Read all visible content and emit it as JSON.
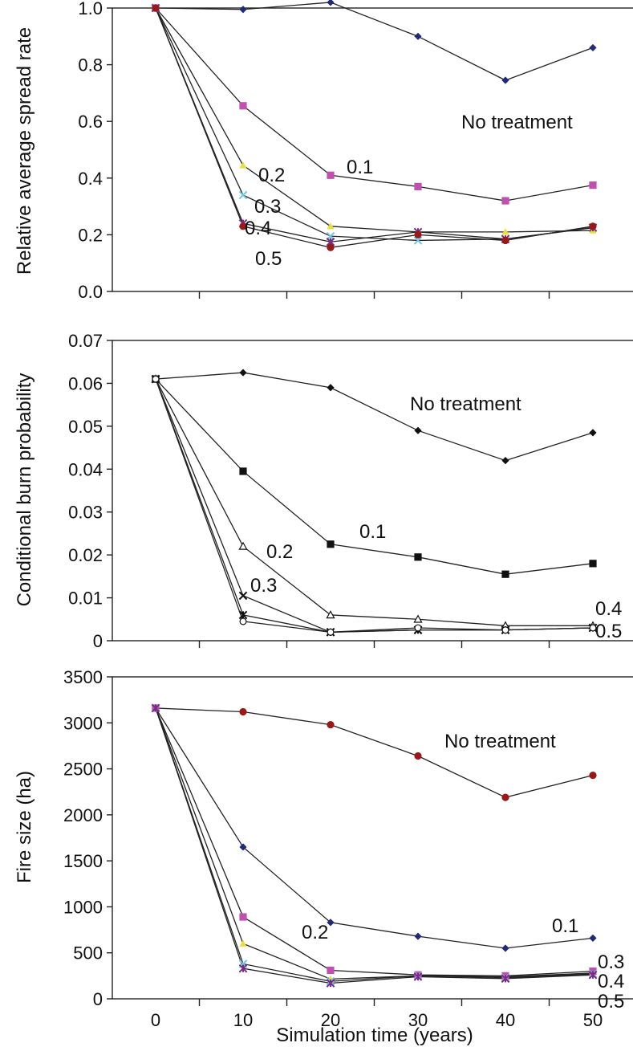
{
  "chart_data": [
    {
      "type": "line",
      "ylabel": "Relative average spread rate",
      "ylim": [
        0,
        1.0
      ],
      "yticks": [
        "0.0",
        "0.2",
        "0.4",
        "0.6",
        "0.8",
        "1.0"
      ],
      "x": [
        0,
        10,
        20,
        30,
        40,
        50
      ],
      "series": [
        {
          "name": "No treatment",
          "marker": "diamond",
          "color": "#1f2a7a",
          "values": [
            1.0,
            0.995,
            1.02,
            0.9,
            0.745,
            0.86
          ]
        },
        {
          "name": "0.1",
          "marker": "square",
          "color": "#c050b0",
          "values": [
            1.0,
            0.655,
            0.41,
            0.37,
            0.32,
            0.375
          ]
        },
        {
          "name": "0.2",
          "marker": "triangle",
          "color": "#e8e03a",
          "values": [
            1.0,
            0.445,
            0.23,
            0.21,
            0.21,
            0.215
          ]
        },
        {
          "name": "0.3",
          "marker": "x",
          "color": "#70c8e0",
          "values": [
            1.0,
            0.34,
            0.195,
            0.18,
            0.185,
            0.225
          ]
        },
        {
          "name": "0.4",
          "marker": "star",
          "color": "#7a2a8a",
          "values": [
            1.0,
            0.24,
            0.175,
            0.21,
            0.185,
            0.225
          ]
        },
        {
          "name": "0.5",
          "marker": "circle",
          "color": "#9a1818",
          "values": [
            1.0,
            0.23,
            0.155,
            0.2,
            0.18,
            0.23
          ]
        }
      ],
      "annotations": [
        "No treatment",
        "0.1",
        "0.2",
        "0.3",
        "0.4",
        "0.5"
      ]
    },
    {
      "type": "line",
      "ylabel": "Conditional burn probability",
      "ylim": [
        0,
        0.07
      ],
      "yticks": [
        "0",
        "0.01",
        "0.02",
        "0.03",
        "0.04",
        "0.05",
        "0.06",
        "0.07"
      ],
      "x": [
        0,
        10,
        20,
        30,
        40,
        50
      ],
      "series": [
        {
          "name": "No treatment",
          "marker": "diamond",
          "color": "#111111",
          "values": [
            0.061,
            0.0625,
            0.059,
            0.049,
            0.042,
            0.0485
          ]
        },
        {
          "name": "0.1",
          "marker": "square",
          "color": "#111111",
          "values": [
            0.061,
            0.0395,
            0.0225,
            0.0195,
            0.0155,
            0.018
          ]
        },
        {
          "name": "0.2",
          "marker": "open-triangle",
          "color": "#111111",
          "values": [
            0.061,
            0.022,
            0.006,
            0.005,
            0.0035,
            0.0035
          ]
        },
        {
          "name": "0.3",
          "marker": "x",
          "color": "#111111",
          "values": [
            0.061,
            0.0105,
            0.002,
            0.0025,
            0.0025,
            0.003
          ]
        },
        {
          "name": "0.4",
          "marker": "star",
          "color": "#111111",
          "values": [
            0.061,
            0.006,
            0.002,
            0.0025,
            0.0025,
            0.003
          ]
        },
        {
          "name": "0.5",
          "marker": "open-circle",
          "color": "#111111",
          "values": [
            0.061,
            0.0045,
            0.002,
            0.003,
            0.0025,
            0.003
          ]
        }
      ],
      "annotations": [
        "No treatment",
        "0.1",
        "0.2",
        "0.3",
        "0.4",
        "0.5"
      ]
    },
    {
      "type": "line",
      "xlabel": "Simulation time (years)",
      "ylabel": "Fire size (ha)",
      "ylim": [
        0,
        3500
      ],
      "yticks": [
        "0",
        "500",
        "1000",
        "1500",
        "2000",
        "2500",
        "3000",
        "3500"
      ],
      "x": [
        0,
        10,
        20,
        30,
        40,
        50
      ],
      "xticks": [
        "0",
        "10",
        "20",
        "30",
        "40",
        "50"
      ],
      "series": [
        {
          "name": "No treatment",
          "marker": "circle",
          "color": "#9a1818",
          "values": [
            3160,
            3120,
            2980,
            2640,
            2190,
            2430
          ]
        },
        {
          "name": "0.1",
          "marker": "diamond",
          "color": "#1f2a7a",
          "values": [
            3160,
            1650,
            830,
            680,
            550,
            660
          ]
        },
        {
          "name": "0.2",
          "marker": "triangle",
          "color": "#e8e03a",
          "values": [
            3160,
            600,
            215,
            250,
            240,
            280
          ]
        },
        {
          "name": "0.3",
          "marker": "square",
          "color": "#c050b0",
          "values": [
            3160,
            890,
            310,
            260,
            250,
            300
          ]
        },
        {
          "name": "0.4",
          "marker": "x",
          "color": "#70c8e0",
          "values": [
            3160,
            380,
            190,
            250,
            230,
            270
          ]
        },
        {
          "name": "0.5",
          "marker": "star",
          "color": "#7a2a8a",
          "values": [
            3160,
            330,
            170,
            240,
            220,
            260
          ]
        }
      ],
      "annotations": [
        "No treatment",
        "0.1",
        "0.2",
        "0.3",
        "0.4",
        "0.5"
      ]
    }
  ]
}
